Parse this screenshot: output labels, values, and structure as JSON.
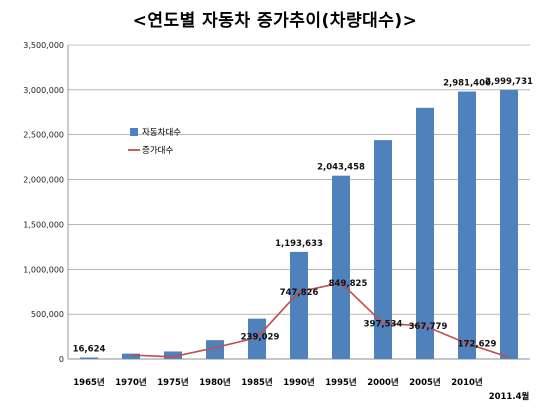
{
  "title": "<연도별 자동차 증가추이(차량대수)>",
  "chart_data": {
    "type": "bar",
    "categories": [
      "1965년",
      "1970년",
      "1975년",
      "1980년",
      "1985년",
      "1990년",
      "1995년",
      "2000년",
      "2005년",
      "2010년",
      "2011.4월"
    ],
    "series": [
      {
        "name": "자동차대수",
        "kind": "bar",
        "color": "#4f81bd",
        "values": [
          16624,
          60000,
          84000,
          210000,
          450000,
          1193633,
          2043458,
          2440000,
          2800000,
          2981400,
          2999731
        ],
        "labels": [
          "16,624",
          null,
          null,
          null,
          null,
          "1,193,633",
          "2,043,458",
          null,
          null,
          "2,981,400",
          "2,999,731"
        ]
      },
      {
        "name": "증가대수",
        "kind": "line",
        "color": "#c0504d",
        "values": [
          null,
          44000,
          24000,
          126000,
          239029,
          747826,
          849825,
          397534,
          367779,
          172629,
          18000
        ],
        "labels": [
          null,
          null,
          null,
          null,
          "239,029",
          "747,826",
          "849,825",
          "397,534",
          "367,779",
          "172,629",
          null
        ]
      }
    ],
    "ylim": [
      0,
      3500000
    ],
    "yticks": [
      0,
      500000,
      1000000,
      1500000,
      2000000,
      2500000,
      3000000,
      3500000
    ],
    "ytick_labels": [
      "0",
      "500,000",
      "1,000,000",
      "1,500,000",
      "2,000,000",
      "2,500,000",
      "3,000,000",
      "3,500,000"
    ],
    "grid": true,
    "legend": "upper-left"
  }
}
